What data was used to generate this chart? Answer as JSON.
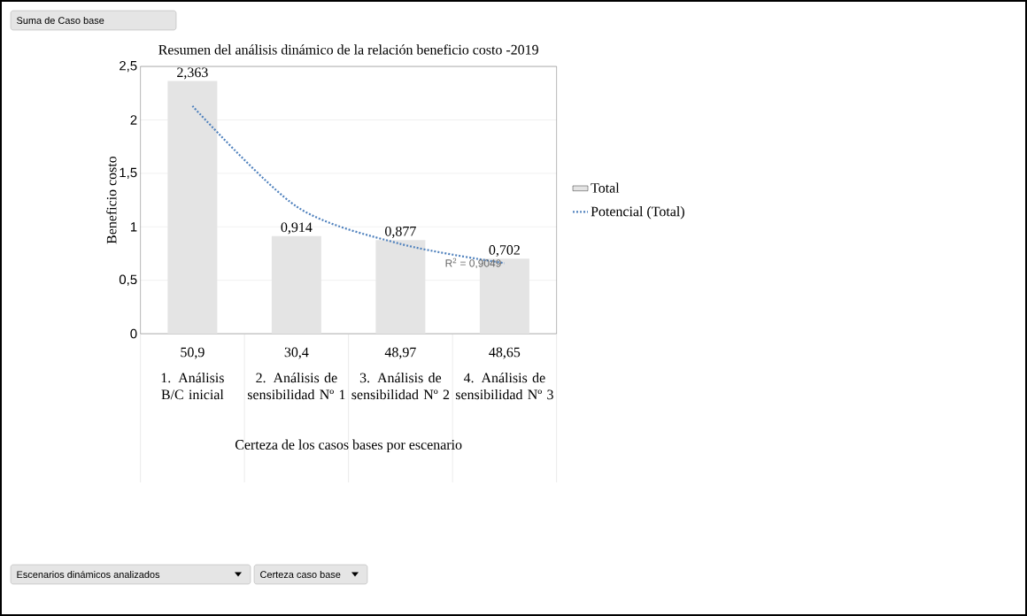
{
  "chart_data": {
    "type": "bar",
    "title": "Resumen  del análisis dinámico de la relación beneficio costo -2019",
    "xlabel": "Certeza de los casos bases por escenario",
    "ylabel": "Beneficio costo",
    "categories": [
      "1. Análisis B/C inicial",
      "2. Análisis de sensibilidad Nº 1",
      "3. Análisis de sensibilidad Nº 2",
      "4. Análisis de sensibilidad Nº 3"
    ],
    "series": [
      {
        "name": "Total",
        "color": "#e4e4e4",
        "values": [
          2.363,
          0.914,
          0.877,
          0.702
        ],
        "value_labels": [
          "2,363",
          "0,914",
          "0,877",
          "0,702"
        ]
      },
      {
        "name": "Potencial (Total)",
        "type": "line",
        "color": "#4f81bd",
        "line_style": "dotted",
        "values": [
          2.13,
          1.19,
          0.84,
          0.66
        ]
      }
    ],
    "ylim": [
      0,
      2.5
    ],
    "yticks": [
      0,
      {
        "value": 0.5,
        "label": "0,5"
      },
      1,
      {
        "value": 1.5,
        "label": "1,5"
      },
      2,
      {
        "value": 2.5,
        "label": "2,5"
      }
    ],
    "grid": "y",
    "legend": "right",
    "annotations": [
      "Suma de Caso base",
      "Escenarios  dinámicos analizados",
      "Certeza caso base",
      "50,9",
      "30,4",
      "48,97",
      "48,65",
      {
        "text": "R$^{2}$ = 0,9049",
        "x": "4. Análisis de sensibilidad Nº 3",
        "y": 0.66
      }
    ]
  }
}
